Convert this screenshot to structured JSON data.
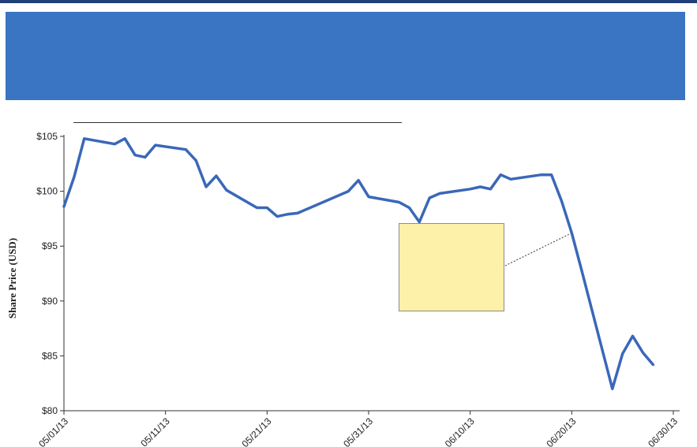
{
  "header": {
    "banner_color": "#3a75c4",
    "rule_color": "#1f3f7a"
  },
  "chart_data": {
    "type": "line",
    "xlabel": "",
    "ylabel": "Share Price (USD)",
    "ylim": [
      80,
      105
    ],
    "yticks": [
      80,
      85,
      90,
      95,
      100,
      105
    ],
    "ytick_labels": [
      "$80",
      "$85",
      "$90",
      "$95",
      "$100",
      "$105"
    ],
    "xlim": [
      "2013-05-01",
      "2013-06-30"
    ],
    "xticks": [
      "2013-05-01",
      "2013-05-11",
      "2013-05-21",
      "2013-05-31",
      "2013-06-10",
      "2013-06-20",
      "2013-06-30"
    ],
    "xtick_labels": [
      "05/01/13",
      "05/11/13",
      "05/21/13",
      "05/31/13",
      "06/10/13",
      "06/20/13",
      "06/30/13"
    ],
    "grid": false,
    "line_color": "#3a68b8",
    "annotation_fill": "#fdf0a8",
    "series": [
      {
        "x": [
          "2013-05-01",
          "2013-05-02",
          "2013-05-03",
          "2013-05-06",
          "2013-05-07",
          "2013-05-08",
          "2013-05-09",
          "2013-05-10",
          "2013-05-13",
          "2013-05-14",
          "2013-05-15",
          "2013-05-16",
          "2013-05-17",
          "2013-05-20",
          "2013-05-21",
          "2013-05-22",
          "2013-05-23",
          "2013-05-24",
          "2013-05-28",
          "2013-05-29",
          "2013-05-30",
          "2013-05-31",
          "2013-06-03",
          "2013-06-04",
          "2013-06-05",
          "2013-06-06",
          "2013-06-07",
          "2013-06-10",
          "2013-06-11",
          "2013-06-12",
          "2013-06-13",
          "2013-06-14",
          "2013-06-17",
          "2013-06-18",
          "2013-06-19",
          "2013-06-20",
          "2013-06-21",
          "2013-06-24",
          "2013-06-25",
          "2013-06-26",
          "2013-06-27",
          "2013-06-28"
        ],
        "values": [
          98.6,
          101.3,
          104.8,
          104.3,
          104.8,
          103.3,
          103.1,
          104.2,
          103.8,
          102.8,
          100.4,
          101.4,
          100.1,
          98.5,
          98.5,
          97.7,
          97.9,
          98.0,
          99.6,
          100.0,
          101.0,
          99.5,
          99.0,
          98.5,
          97.2,
          99.4,
          99.8,
          100.2,
          100.4,
          100.2,
          101.5,
          101.1,
          101.5,
          101.5,
          99.1,
          96.2,
          92.7,
          82.0,
          85.2,
          86.8,
          85.3,
          84.2
        ]
      }
    ]
  }
}
